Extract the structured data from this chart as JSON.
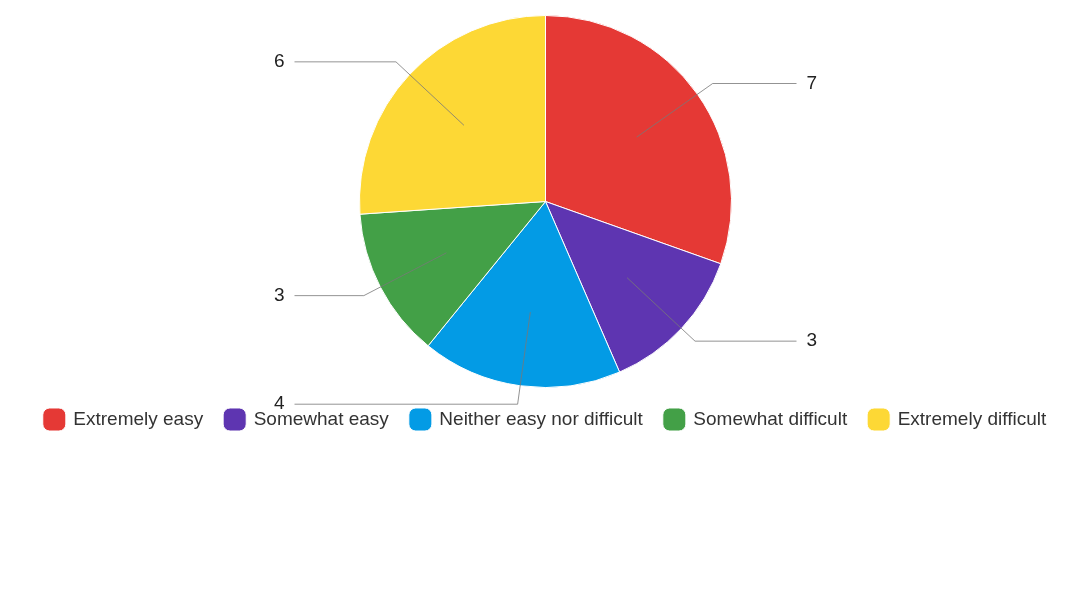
{
  "chart_data": {
    "type": "pie",
    "categories": [
      "Extremely easy",
      "Somewhat easy",
      "Neither easy nor difficult",
      "Somewhat difficult",
      "Extremely difficult"
    ],
    "values": [
      7,
      3,
      4,
      3,
      6
    ],
    "colors": [
      "#e53935",
      "#5e35b1",
      "#039be5",
      "#43a047",
      "#fdd835"
    ],
    "data_labels": true,
    "legend": "bottom"
  }
}
